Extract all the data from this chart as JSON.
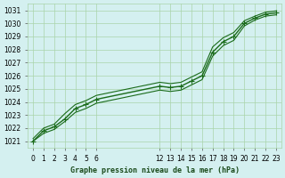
{
  "title": "Graphe pression niveau de la mer (hPa)",
  "background_color": "#d4f0f0",
  "grid_color": "#aad4aa",
  "line_color": "#1a6b1a",
  "x_ticks_first": [
    0,
    1,
    2,
    3,
    4,
    5,
    6
  ],
  "x_ticks_second": [
    12,
    13,
    14,
    15,
    16,
    17,
    18,
    19,
    20,
    21,
    22,
    23
  ],
  "ylim": [
    1020.5,
    1031.5
  ],
  "xlim": [
    -0.5,
    23.5
  ],
  "yticks": [
    1021,
    1022,
    1023,
    1024,
    1025,
    1026,
    1027,
    1028,
    1029,
    1030,
    1031
  ],
  "series_main": [
    [
      0,
      1021.0
    ],
    [
      1,
      1021.8
    ],
    [
      2,
      1022.1
    ],
    [
      3,
      1022.7
    ],
    [
      4,
      1023.5
    ],
    [
      5,
      1023.8
    ],
    [
      6,
      1024.2
    ],
    [
      12,
      1025.2
    ],
    [
      13,
      1025.1
    ],
    [
      14,
      1025.2
    ],
    [
      15,
      1025.6
    ],
    [
      16,
      1026.0
    ],
    [
      17,
      1027.8
    ],
    [
      18,
      1028.6
    ],
    [
      19,
      1029.0
    ],
    [
      20,
      1030.0
    ],
    [
      21,
      1030.4
    ],
    [
      22,
      1030.7
    ],
    [
      23,
      1030.8
    ]
  ],
  "series_upper": [
    [
      0,
      1021.2
    ],
    [
      1,
      1022.0
    ],
    [
      2,
      1022.3
    ],
    [
      3,
      1023.1
    ],
    [
      4,
      1023.8
    ],
    [
      5,
      1024.1
    ],
    [
      6,
      1024.5
    ],
    [
      12,
      1025.5
    ],
    [
      13,
      1025.4
    ],
    [
      14,
      1025.5
    ],
    [
      15,
      1025.9
    ],
    [
      16,
      1026.3
    ],
    [
      17,
      1028.2
    ],
    [
      18,
      1028.9
    ],
    [
      19,
      1029.3
    ],
    [
      20,
      1030.2
    ],
    [
      21,
      1030.55
    ],
    [
      22,
      1030.85
    ],
    [
      23,
      1030.95
    ]
  ],
  "series_lower": [
    [
      0,
      1021.0
    ],
    [
      1,
      1021.6
    ],
    [
      2,
      1021.9
    ],
    [
      3,
      1022.5
    ],
    [
      4,
      1023.2
    ],
    [
      5,
      1023.5
    ],
    [
      6,
      1023.9
    ],
    [
      12,
      1024.9
    ],
    [
      13,
      1024.8
    ],
    [
      14,
      1024.9
    ],
    [
      15,
      1025.3
    ],
    [
      16,
      1025.7
    ],
    [
      17,
      1027.5
    ],
    [
      18,
      1028.3
    ],
    [
      19,
      1028.7
    ],
    [
      20,
      1029.8
    ],
    [
      21,
      1030.25
    ],
    [
      22,
      1030.55
    ],
    [
      23,
      1030.65
    ]
  ]
}
